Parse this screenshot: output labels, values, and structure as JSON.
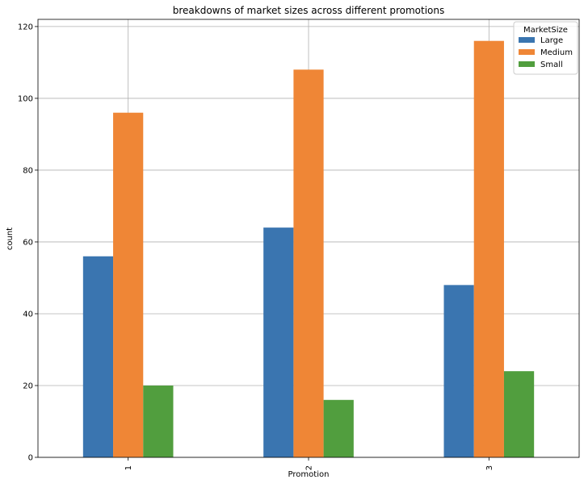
{
  "chart_data": {
    "type": "bar",
    "title": "breakdowns of market sizes across different promotions",
    "xlabel": "Promotion",
    "ylabel": "count",
    "categories": [
      "1",
      "2",
      "3"
    ],
    "ylim": [
      0,
      122
    ],
    "yticks": [
      0,
      20,
      40,
      60,
      80,
      100,
      120
    ],
    "grid": true,
    "legend": {
      "title": "MarketSize",
      "placement": "top-right"
    },
    "series": [
      {
        "name": "Large",
        "color": "#3a75b0",
        "values": [
          56,
          64,
          48
        ]
      },
      {
        "name": "Medium",
        "color": "#ef8636",
        "values": [
          96,
          108,
          116
        ]
      },
      {
        "name": "Small",
        "color": "#519e3e",
        "values": [
          20,
          16,
          24
        ]
      }
    ]
  }
}
